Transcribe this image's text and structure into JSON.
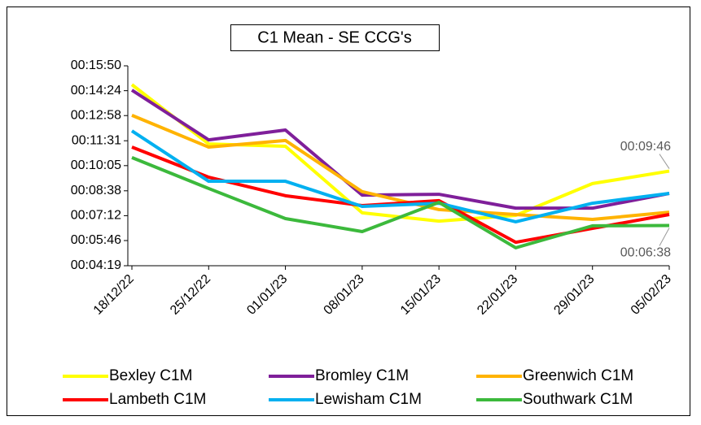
{
  "chart_data": {
    "type": "line",
    "title": "C1 Mean - SE CCG's",
    "categories": [
      "18/12/22",
      "25/12/22",
      "01/01/23",
      "08/01/23",
      "15/01/23",
      "22/01/23",
      "29/01/23",
      "05/02/23"
    ],
    "ylim": [
      259,
      950
    ],
    "yticks": [
      {
        "value": 259,
        "label": "00:04:19"
      },
      {
        "value": 346,
        "label": "00:05:46"
      },
      {
        "value": 432,
        "label": "00:07:12"
      },
      {
        "value": 518,
        "label": "00:08:38"
      },
      {
        "value": 605,
        "label": "00:10:05"
      },
      {
        "value": 691,
        "label": "00:11:31"
      },
      {
        "value": 778,
        "label": "00:12:58"
      },
      {
        "value": 864,
        "label": "00:14:24"
      },
      {
        "value": 950,
        "label": "00:15:50"
      }
    ],
    "legend": "bottom",
    "series": [
      {
        "name": "Bexley C1M",
        "color": "#ffff00",
        "values": [
          885,
          680,
          672,
          442,
          413,
          433,
          543,
          586
        ],
        "value_labels": [
          null,
          null,
          null,
          null,
          null,
          null,
          null,
          "00:09:46"
        ]
      },
      {
        "name": "Bromley C1M",
        "color": "#7f1f9a",
        "values": [
          866,
          694,
          728,
          503,
          506,
          458,
          458,
          509
        ]
      },
      {
        "name": "Greenwich C1M",
        "color": "#ffb300",
        "values": [
          779,
          669,
          692,
          515,
          453,
          436,
          419,
          444
        ]
      },
      {
        "name": "Lambeth C1M",
        "color": "#ff0000",
        "values": [
          669,
          565,
          501,
          467,
          484,
          340,
          388,
          436
        ]
      },
      {
        "name": "Lewisham C1M",
        "color": "#00b0f0",
        "values": [
          725,
          551,
          551,
          464,
          475,
          411,
          475,
          509
        ]
      },
      {
        "name": "Southwark C1M",
        "color": "#3cb93c",
        "values": [
          633,
          526,
          422,
          377,
          478,
          321,
          397,
          398
        ],
        "value_labels": [
          null,
          null,
          null,
          null,
          null,
          null,
          null,
          "00:06:38"
        ]
      }
    ]
  }
}
